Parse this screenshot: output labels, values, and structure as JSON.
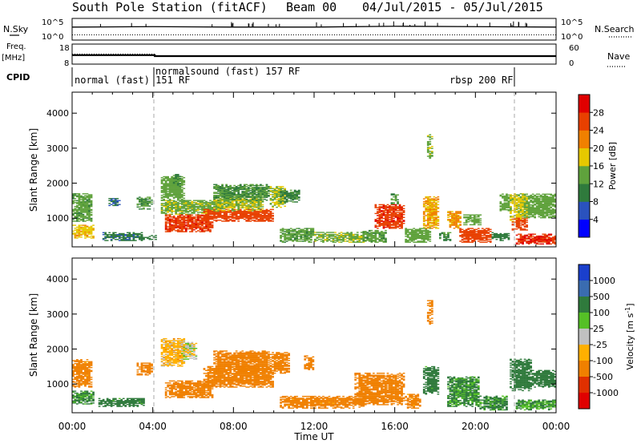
{
  "header": {
    "station": "South Pole Station (fitACF)",
    "beam": "Beam 00",
    "dates": "04/Jul/2015 - 05/Jul/2015"
  },
  "left_labels": {
    "nsky": "N.Sky",
    "freq": "Freq.",
    "freq_unit": "[MHz]",
    "cpid": "CPID"
  },
  "right_labels": {
    "nsearch": "N.Search",
    "nave": "Nave"
  },
  "noise_axis": {
    "left_top": "10^5",
    "left_bottom": "10^0",
    "right_top": "10^5",
    "right_bottom": "10^0"
  },
  "freq_axis": {
    "left_top": "18",
    "left_bottom": "8",
    "right_top": "60",
    "right_bottom": "0"
  },
  "cpid_blocks": [
    {
      "label": "normal (fast) 151 RF"
    },
    {
      "label": "normalsound (fast) 157 RF"
    },
    {
      "label": "rbsp 200 RF"
    }
  ],
  "time_axis": {
    "label": "Time UT",
    "ticks": [
      "00:00",
      "04:00",
      "08:00",
      "12:00",
      "16:00",
      "20:00",
      "00:00"
    ]
  },
  "colorbars": {
    "power": {
      "label": "Power [dB]",
      "ticks": [
        "4",
        "8",
        "12",
        "16",
        "20",
        "24",
        "28"
      ],
      "colors": [
        "#0000ff",
        "#2a52be",
        "#2f7a3c",
        "#5fa23c",
        "#e6c800",
        "#f08000",
        "#e84000",
        "#e00000"
      ]
    },
    "velocity": {
      "label": "Velocity [m s",
      "label_sup": "-1",
      "label_end": "]",
      "ticks": [
        "1000",
        "500",
        "100",
        "25",
        "-25",
        "-100",
        "-500",
        "-1000"
      ],
      "colors": [
        "#1a3fcc",
        "#3a6cb0",
        "#2f7a3c",
        "#55c026",
        "#c0c0c0",
        "#ffb000",
        "#f08000",
        "#e03000",
        "#e00000"
      ]
    }
  },
  "chart_data": [
    {
      "type": "line",
      "panel": "noise",
      "series": [
        {
          "name": "N.Sky",
          "x": [
            0,
            4,
            8,
            12,
            16,
            20,
            24
          ],
          "values": [
            3.0,
            3.1,
            3.0,
            3.0,
            3.2,
            3.1,
            3.0
          ]
        },
        {
          "name": "N.Search",
          "x": [
            0,
            4,
            8,
            12,
            16,
            20,
            24
          ],
          "values": [
            1.2,
            1.2,
            1.2,
            1.2,
            1.2,
            1.2,
            1.2
          ]
        }
      ],
      "ylim": [
        "10^0",
        "10^5"
      ]
    },
    {
      "type": "line",
      "panel": "frequency",
      "series": [
        {
          "name": "Freq.",
          "x": [
            0,
            4.1,
            4.1,
            24
          ],
          "values": [
            12.5,
            12.5,
            12.0,
            12.0
          ]
        },
        {
          "name": "Nave",
          "x": [
            0,
            4.1,
            4.1,
            24
          ],
          "values": [
            30,
            30,
            25,
            25
          ]
        }
      ],
      "ylim": [
        8,
        18
      ]
    },
    {
      "type": "heatmap",
      "panel": "power",
      "xlabel": "Time UT",
      "ylabel": "Slant Range [km]",
      "xlim": [
        0,
        24
      ],
      "ylim": [
        180,
        4600
      ],
      "yticks": [
        1000,
        2000,
        3000,
        4000
      ],
      "colorbar": {
        "label": "Power [dB]",
        "range": [
          0,
          32
        ]
      },
      "regions": [
        {
          "t0": 0.0,
          "t1": 1.0,
          "r0": 900,
          "r1": 1700,
          "v": 13
        },
        {
          "t0": 0.0,
          "t1": 1.1,
          "r0": 420,
          "r1": 800,
          "v": 19
        },
        {
          "t0": 0.3,
          "t1": 0.7,
          "r0": 1300,
          "r1": 1600,
          "v": 14
        },
        {
          "t0": 1.5,
          "t1": 3.5,
          "r0": 350,
          "r1": 600,
          "v": 9
        },
        {
          "t0": 1.8,
          "t1": 2.4,
          "r0": 1350,
          "r1": 1550,
          "v": 8
        },
        {
          "t0": 3.2,
          "t1": 4.0,
          "r0": 1250,
          "r1": 1600,
          "v": 12
        },
        {
          "t0": 3.3,
          "t1": 4.2,
          "r0": 380,
          "r1": 520,
          "v": 10
        },
        {
          "t0": 4.4,
          "t1": 7.4,
          "r0": 1100,
          "r1": 1500,
          "v": 15
        },
        {
          "t0": 4.6,
          "t1": 7.0,
          "r0": 600,
          "r1": 1100,
          "v": 27
        },
        {
          "t0": 4.4,
          "t1": 5.6,
          "r0": 1500,
          "r1": 2200,
          "v": 14
        },
        {
          "t0": 5.0,
          "t1": 5.4,
          "r0": 1900,
          "r1": 2250,
          "v": 12
        },
        {
          "t0": 6.5,
          "t1": 10.0,
          "r0": 900,
          "r1": 1250,
          "v": 26
        },
        {
          "t0": 7.0,
          "t1": 9.5,
          "r0": 1200,
          "r1": 1600,
          "v": 16
        },
        {
          "t0": 7.0,
          "t1": 9.8,
          "r0": 1500,
          "r1": 1950,
          "v": 12
        },
        {
          "t0": 9.8,
          "t1": 10.6,
          "r0": 1300,
          "r1": 1900,
          "v": 16
        },
        {
          "t0": 10.3,
          "t1": 11.3,
          "r0": 1450,
          "r1": 1800,
          "v": 11
        },
        {
          "t0": 10.3,
          "t1": 12.0,
          "r0": 300,
          "r1": 700,
          "v": 13
        },
        {
          "t0": 12.0,
          "t1": 14.5,
          "r0": 300,
          "r1": 600,
          "v": 15
        },
        {
          "t0": 14.4,
          "t1": 15.6,
          "r0": 300,
          "r1": 650,
          "v": 13
        },
        {
          "t0": 15.0,
          "t1": 16.5,
          "r0": 700,
          "r1": 1400,
          "v": 27
        },
        {
          "t0": 15.8,
          "t1": 16.2,
          "r0": 1400,
          "r1": 1700,
          "v": 12
        },
        {
          "t0": 16.5,
          "t1": 17.8,
          "r0": 300,
          "r1": 700,
          "v": 14
        },
        {
          "t0": 17.4,
          "t1": 18.2,
          "r0": 700,
          "r1": 1600,
          "v": 20
        },
        {
          "t0": 17.6,
          "t1": 17.9,
          "r0": 2700,
          "r1": 3400,
          "v": 15
        },
        {
          "t0": 18.2,
          "t1": 18.8,
          "r0": 350,
          "r1": 600,
          "v": 11
        },
        {
          "t0": 18.6,
          "t1": 19.3,
          "r0": 700,
          "r1": 1200,
          "v": 21
        },
        {
          "t0": 19.2,
          "t1": 20.8,
          "r0": 300,
          "r1": 700,
          "v": 26
        },
        {
          "t0": 19.4,
          "t1": 20.3,
          "r0": 800,
          "r1": 1100,
          "v": 14
        },
        {
          "t0": 20.8,
          "t1": 21.7,
          "r0": 350,
          "r1": 600,
          "v": 10
        },
        {
          "t0": 21.2,
          "t1": 21.8,
          "r0": 1200,
          "r1": 1700,
          "v": 14
        },
        {
          "t0": 21.7,
          "t1": 22.6,
          "r0": 900,
          "r1": 1700,
          "v": 17
        },
        {
          "t0": 21.8,
          "t1": 22.6,
          "r0": 650,
          "r1": 1000,
          "v": 26
        },
        {
          "t0": 22.4,
          "t1": 24.0,
          "r0": 1000,
          "r1": 1700,
          "v": 14
        },
        {
          "t0": 22.0,
          "t1": 24.0,
          "r0": 250,
          "r1": 550,
          "v": 28
        }
      ]
    },
    {
      "type": "heatmap",
      "panel": "velocity",
      "xlabel": "Time UT",
      "ylabel": "Slant Range [km]",
      "xlim": [
        0,
        24
      ],
      "ylim": [
        180,
        4600
      ],
      "yticks": [
        1000,
        2000,
        3000,
        4000
      ],
      "colorbar": {
        "label": "Velocity [m s-1]",
        "range": [
          -1000,
          1000
        ]
      },
      "regions": [
        {
          "t0": 0.0,
          "t1": 1.0,
          "r0": 900,
          "r1": 1700,
          "v": -150
        },
        {
          "t0": 0.0,
          "t1": 1.1,
          "r0": 420,
          "r1": 800,
          "v": 120
        },
        {
          "t0": 1.3,
          "t1": 3.6,
          "r0": 350,
          "r1": 600,
          "v": 150
        },
        {
          "t0": 3.2,
          "t1": 4.0,
          "r0": 1250,
          "r1": 1600,
          "v": -200
        },
        {
          "t0": 4.4,
          "t1": 5.6,
          "r0": 1500,
          "r1": 2300,
          "v": -60
        },
        {
          "t0": 4.6,
          "t1": 7.0,
          "r0": 600,
          "r1": 1100,
          "v": -250
        },
        {
          "t0": 6.5,
          "t1": 10.0,
          "r0": 900,
          "r1": 1500,
          "v": -220
        },
        {
          "t0": 7.0,
          "t1": 9.8,
          "r0": 1400,
          "r1": 1950,
          "v": -180
        },
        {
          "t0": 5.4,
          "t1": 6.2,
          "r0": 1700,
          "r1": 2200,
          "v": 0
        },
        {
          "t0": 9.8,
          "t1": 10.8,
          "r0": 1300,
          "r1": 1900,
          "v": -200
        },
        {
          "t0": 11.5,
          "t1": 12.0,
          "r0": 1400,
          "r1": 1800,
          "v": -400
        },
        {
          "t0": 10.3,
          "t1": 14.5,
          "r0": 300,
          "r1": 650,
          "v": -150
        },
        {
          "t0": 14.0,
          "t1": 16.5,
          "r0": 400,
          "r1": 1300,
          "v": -300
        },
        {
          "t0": 16.5,
          "t1": 17.3,
          "r0": 300,
          "r1": 700,
          "v": -150
        },
        {
          "t0": 17.4,
          "t1": 18.2,
          "r0": 700,
          "r1": 1500,
          "v": 150
        },
        {
          "t0": 17.6,
          "t1": 17.9,
          "r0": 2700,
          "r1": 3400,
          "v": -150
        },
        {
          "t0": 18.6,
          "t1": 20.2,
          "r0": 350,
          "r1": 1200,
          "v": 120
        },
        {
          "t0": 20.2,
          "t1": 21.6,
          "r0": 250,
          "r1": 650,
          "v": 130
        },
        {
          "t0": 21.7,
          "t1": 22.8,
          "r0": 800,
          "r1": 1700,
          "v": 300
        },
        {
          "t0": 22.8,
          "t1": 24.0,
          "r0": 900,
          "r1": 1400,
          "v": 160
        },
        {
          "t0": 22.0,
          "t1": 24.0,
          "r0": 250,
          "r1": 550,
          "v": 110
        }
      ]
    }
  ]
}
